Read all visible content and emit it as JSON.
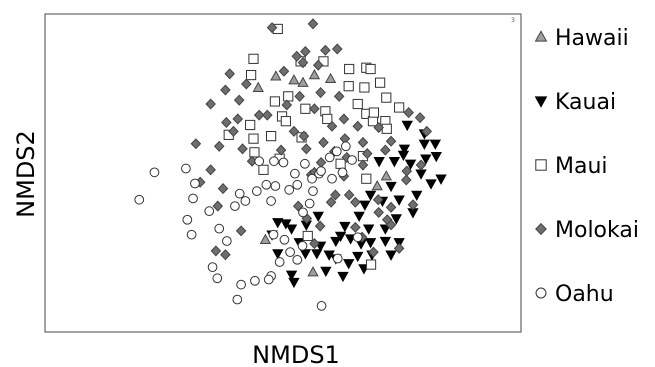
{
  "chart_data": {
    "type": "scatter",
    "title": "",
    "xlabel": "NMDS1",
    "ylabel": "NMDS2",
    "corner_label": "3",
    "xlim": [
      0,
      100
    ],
    "ylim": [
      0,
      100
    ],
    "grid": false,
    "legend_position": "right",
    "series": [
      {
        "name": "Hawaii",
        "marker": "triangle-up",
        "fill": "#9e9e9e",
        "stroke": "#444444",
        "points": [
          [
            48.5,
            80.4
          ],
          [
            52.3,
            79.2
          ],
          [
            54.2,
            78.4
          ],
          [
            56.6,
            80.8
          ],
          [
            60.0,
            79.6
          ],
          [
            44.8,
            76.8
          ],
          [
            69.8,
            45.9
          ],
          [
            71.7,
            49.0
          ],
          [
            46.3,
            29.0
          ],
          [
            56.3,
            18.8
          ]
        ]
      },
      {
        "name": "Kauai",
        "marker": "triangle-down",
        "fill": "#000000",
        "stroke": "#000000",
        "points": [
          [
            76.1,
            65.1
          ],
          [
            75.5,
            57.6
          ],
          [
            79.7,
            62.4
          ],
          [
            76.8,
            52.9
          ],
          [
            79.0,
            49.8
          ],
          [
            81.1,
            46.7
          ],
          [
            73.4,
            53.7
          ],
          [
            72.7,
            45.9
          ],
          [
            70.9,
            41.2
          ],
          [
            78.1,
            43.1
          ],
          [
            74.4,
            41.6
          ],
          [
            68.4,
            43.1
          ],
          [
            67.2,
            40.0
          ],
          [
            66.0,
            36.5
          ],
          [
            63.0,
            33.3
          ],
          [
            77.3,
            37.6
          ],
          [
            73.8,
            35.7
          ],
          [
            71.5,
            32.5
          ],
          [
            68.0,
            32.5
          ],
          [
            64.2,
            29.4
          ],
          [
            61.1,
            28.6
          ],
          [
            57.9,
            27.1
          ],
          [
            61.1,
            23.1
          ],
          [
            63.8,
            21.6
          ],
          [
            65.7,
            23.9
          ],
          [
            68.7,
            24.3
          ],
          [
            72.7,
            24.3
          ],
          [
            67.0,
            20.0
          ],
          [
            62.6,
            17.6
          ],
          [
            59.0,
            19.2
          ],
          [
            59.7,
            24.3
          ],
          [
            57.1,
            24.7
          ],
          [
            54.7,
            24.7
          ],
          [
            53.4,
            28.2
          ],
          [
            50.6,
            34.1
          ],
          [
            51.8,
            32.5
          ],
          [
            54.9,
            33.7
          ],
          [
            57.4,
            36.5
          ],
          [
            48.9,
            24.7
          ],
          [
            47.7,
            30.6
          ],
          [
            48.9,
            34.5
          ],
          [
            51.8,
            18.0
          ],
          [
            52.3,
            15.7
          ],
          [
            71.5,
            28.6
          ],
          [
            74.4,
            28.2
          ],
          [
            68.4,
            28.2
          ],
          [
            66.4,
            27.8
          ],
          [
            62.1,
            30.2
          ],
          [
            70.2,
            53.7
          ],
          [
            75.3,
            55.7
          ],
          [
            80.0,
            54.5
          ],
          [
            82.2,
            55.3
          ],
          [
            83.2,
            48.2
          ],
          [
            79.7,
            59.2
          ],
          [
            82.0,
            59.2
          ]
        ]
      },
      {
        "name": "Maui",
        "marker": "square",
        "fill": "#ffffff",
        "stroke": "#333333",
        "points": [
          [
            48.9,
            95.3
          ],
          [
            43.8,
            85.9
          ],
          [
            43.3,
            80.8
          ],
          [
            53.7,
            85.1
          ],
          [
            58.5,
            85.1
          ],
          [
            63.9,
            82.7
          ],
          [
            67.5,
            83.1
          ],
          [
            68.4,
            82.7
          ],
          [
            63.8,
            77.3
          ],
          [
            67.1,
            76.9
          ],
          [
            70.4,
            78.4
          ],
          [
            71.7,
            73.7
          ],
          [
            74.4,
            70.6
          ],
          [
            67.5,
            68.6
          ],
          [
            68.9,
            66.3
          ],
          [
            71.5,
            66.3
          ],
          [
            71.8,
            63.9
          ],
          [
            69.1,
            69.0
          ],
          [
            65.7,
            71.7
          ],
          [
            48.3,
            72.5
          ],
          [
            51.1,
            74.1
          ],
          [
            49.8,
            67.8
          ],
          [
            43.8,
            60.8
          ],
          [
            38.6,
            62.0
          ],
          [
            44.0,
            56.5
          ],
          [
            49.3,
            54.5
          ],
          [
            45.9,
            51.0
          ],
          [
            54.7,
            70.2
          ],
          [
            58.9,
            69.4
          ],
          [
            59.3,
            67.0
          ],
          [
            53.9,
            61.2
          ],
          [
            62.1,
            52.9
          ],
          [
            67.5,
            48.2
          ],
          [
            68.5,
            21.2
          ],
          [
            55.2,
            30.2
          ],
          [
            47.5,
            61.6
          ],
          [
            50.6,
            66.3
          ],
          [
            66.8,
            55.3
          ],
          [
            43.1,
            65.1
          ]
        ]
      },
      {
        "name": "Molokai",
        "marker": "diamond",
        "fill": "#6e6e6e",
        "stroke": "#444444",
        "points": [
          [
            47.7,
            95.7
          ],
          [
            56.3,
            96.9
          ],
          [
            54.7,
            88.2
          ],
          [
            58.9,
            88.6
          ],
          [
            61.4,
            89.0
          ],
          [
            52.9,
            86.7
          ],
          [
            54.2,
            84.7
          ],
          [
            57.4,
            83.9
          ],
          [
            50.2,
            82.0
          ],
          [
            38.8,
            81.2
          ],
          [
            37.9,
            76.1
          ],
          [
            42.3,
            78.0
          ],
          [
            40.8,
            72.9
          ],
          [
            40.5,
            67.0
          ],
          [
            38.1,
            65.9
          ],
          [
            39.6,
            63.1
          ],
          [
            34.8,
            71.7
          ],
          [
            36.6,
            58.4
          ],
          [
            34.8,
            51.0
          ],
          [
            31.7,
            59.2
          ],
          [
            32.6,
            47.1
          ],
          [
            37.4,
            45.1
          ],
          [
            36.3,
            39.6
          ],
          [
            41.2,
            31.8
          ],
          [
            37.9,
            24.3
          ],
          [
            35.9,
            25.5
          ],
          [
            45.0,
            68.2
          ],
          [
            46.7,
            68.2
          ],
          [
            50.8,
            71.4
          ],
          [
            53.5,
            74.1
          ],
          [
            56.6,
            70.2
          ],
          [
            61.8,
            74.1
          ],
          [
            57.9,
            75.3
          ],
          [
            60.3,
            64.7
          ],
          [
            62.8,
            67.0
          ],
          [
            63.0,
            60.8
          ],
          [
            65.7,
            64.7
          ],
          [
            66.8,
            59.6
          ],
          [
            63.4,
            54.9
          ],
          [
            62.8,
            49.0
          ],
          [
            66.8,
            52.5
          ],
          [
            67.7,
            56.1
          ],
          [
            71.5,
            57.2
          ],
          [
            72.7,
            60.0
          ],
          [
            70.1,
            64.3
          ],
          [
            55.9,
            49.4
          ],
          [
            56.6,
            50.2
          ],
          [
            58.0,
            53.3
          ],
          [
            60.8,
            56.8
          ],
          [
            58.5,
            59.6
          ],
          [
            54.4,
            61.6
          ],
          [
            54.9,
            57.6
          ],
          [
            61.0,
            43.1
          ],
          [
            52.3,
            63.1
          ],
          [
            49.6,
            57.2
          ],
          [
            41.5,
            57.6
          ],
          [
            43.5,
            53.7
          ],
          [
            53.2,
            39.6
          ],
          [
            55.0,
            35.7
          ],
          [
            57.8,
            33.3
          ],
          [
            66.6,
            29.8
          ],
          [
            65.2,
            40.8
          ],
          [
            63.9,
            43.1
          ],
          [
            70.1,
            37.6
          ],
          [
            71.9,
            35.3
          ],
          [
            72.7,
            33.7
          ],
          [
            74.4,
            26.3
          ],
          [
            69.0,
            25.1
          ],
          [
            65.2,
            32.9
          ],
          [
            56.6,
            27.8
          ],
          [
            76.4,
            69.0
          ],
          [
            78.8,
            67.4
          ],
          [
            80.2,
            63.1
          ],
          [
            76.0,
            50.6
          ],
          [
            79.0,
            52.5
          ],
          [
            75.9,
            47.8
          ],
          [
            70.0,
            41.6
          ],
          [
            72.7,
            39.2
          ],
          [
            77.3,
            40.0
          ],
          [
            60.1,
            40.8
          ]
        ]
      },
      {
        "name": "Oahu",
        "marker": "circle",
        "fill": "#ffffff",
        "stroke": "#333333",
        "points": [
          [
            23.0,
            50.2
          ],
          [
            19.8,
            41.6
          ],
          [
            29.6,
            51.4
          ],
          [
            31.1,
            42.0
          ],
          [
            29.9,
            35.3
          ],
          [
            30.8,
            30.6
          ],
          [
            34.5,
            38.0
          ],
          [
            40.9,
            43.5
          ],
          [
            39.9,
            39.6
          ],
          [
            36.6,
            32.5
          ],
          [
            38.2,
            28.6
          ],
          [
            35.2,
            20.4
          ],
          [
            36.2,
            16.9
          ],
          [
            41.2,
            14.9
          ],
          [
            44.1,
            16.1
          ],
          [
            40.4,
            10.2
          ],
          [
            47.5,
            17.6
          ],
          [
            47.0,
            16.5
          ],
          [
            49.3,
            22.0
          ],
          [
            51.5,
            25.1
          ],
          [
            53.0,
            22.7
          ],
          [
            55.6,
            40.4
          ],
          [
            54.2,
            37.6
          ],
          [
            56.3,
            44.3
          ],
          [
            53.0,
            46.3
          ],
          [
            51.3,
            44.7
          ],
          [
            56.1,
            48.2
          ],
          [
            57.6,
            49.8
          ],
          [
            52.5,
            49.8
          ],
          [
            50.1,
            53.3
          ],
          [
            48.1,
            53.7
          ],
          [
            45.0,
            53.7
          ],
          [
            44.5,
            44.3
          ],
          [
            47.5,
            41.2
          ],
          [
            48.4,
            45.9
          ],
          [
            46.5,
            46.3
          ],
          [
            54.6,
            52.9
          ],
          [
            58.0,
            50.6
          ],
          [
            59.8,
            54.9
          ],
          [
            61.3,
            56.8
          ],
          [
            63.2,
            58.4
          ],
          [
            64.5,
            54.1
          ],
          [
            62.5,
            50.2
          ],
          [
            60.3,
            48.2
          ],
          [
            48.0,
            30.6
          ],
          [
            50.3,
            29.0
          ],
          [
            54.1,
            27.1
          ],
          [
            58.1,
            8.2
          ],
          [
            61.5,
            23.1
          ],
          [
            65.7,
            29.8
          ],
          [
            31.5,
            46.7
          ],
          [
            42.1,
            41.2
          ]
        ]
      }
    ]
  }
}
